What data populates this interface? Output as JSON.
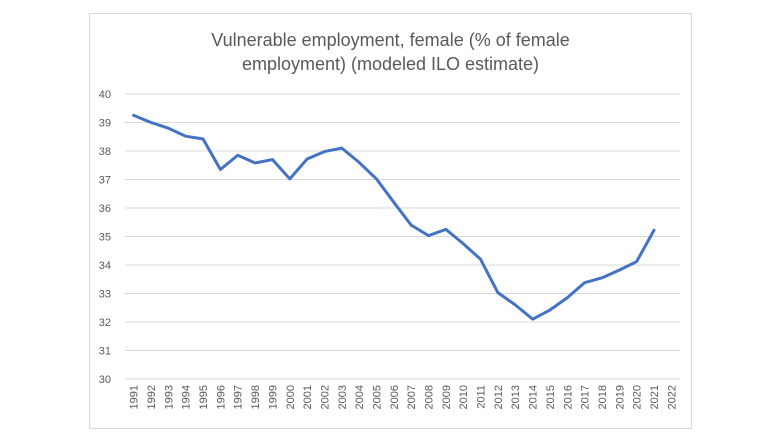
{
  "chart_data": {
    "type": "line",
    "title_line1": "Vulnerable employment, female (% of female",
    "title_line2": "employment) (modeled ILO estimate)",
    "xlabel": "",
    "ylabel": "",
    "ylim": [
      30,
      40
    ],
    "y_ticks": [
      "30",
      "31",
      "32",
      "33",
      "34",
      "35",
      "36",
      "37",
      "38",
      "39",
      "40"
    ],
    "categories": [
      "1991",
      "1992",
      "1993",
      "1994",
      "1995",
      "1996",
      "1997",
      "1998",
      "1999",
      "2000",
      "2001",
      "2002",
      "2003",
      "2004",
      "2005",
      "2006",
      "2007",
      "2008",
      "2009",
      "2010",
      "2011",
      "2012",
      "2013",
      "2014",
      "2015",
      "2016",
      "2017",
      "2018",
      "2019",
      "2020",
      "2021",
      "2022"
    ],
    "series": [
      {
        "values": [
          39.25,
          39.0,
          38.8,
          38.52,
          38.42,
          37.35,
          37.85,
          37.58,
          37.7,
          37.02,
          37.72,
          37.98,
          38.1,
          37.6,
          37.02,
          36.2,
          35.4,
          35.03,
          35.25,
          34.75,
          34.2,
          33.03,
          32.6,
          32.1,
          32.42,
          32.85,
          33.38,
          33.55,
          33.82,
          34.12,
          35.22,
          null
        ],
        "color": "#4472c4"
      }
    ],
    "grid": true,
    "legend": "none"
  }
}
